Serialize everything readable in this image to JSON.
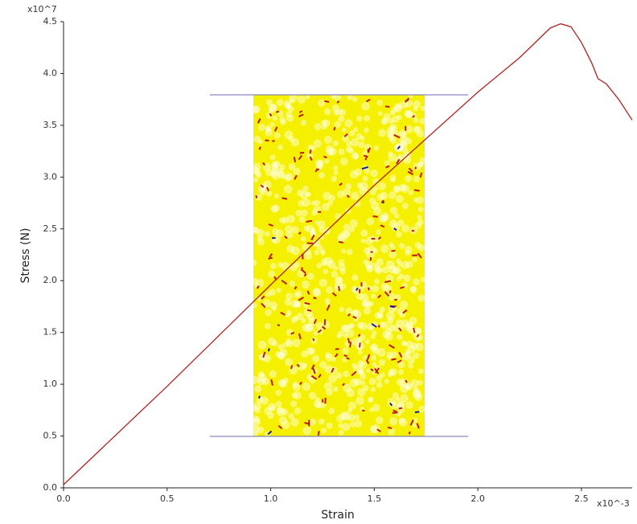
{
  "chart_data": {
    "type": "line",
    "x_label": "Strain",
    "y_label": "Stress (N)",
    "x_multiplier": "x10^-3",
    "y_multiplier": "x10^7",
    "xlim": [
      0,
      2.745
    ],
    "ylim": [
      0,
      4.5
    ],
    "xticks": [
      {
        "value": 0,
        "label": "0.0"
      },
      0.5,
      {
        "value": 1,
        "label": "1.0"
      },
      1.5,
      {
        "value": 2,
        "label": "2.0"
      },
      2.5
    ],
    "yticks": [
      {
        "value": 0,
        "label": "0.0"
      },
      0.5,
      {
        "value": 1,
        "label": "1.0"
      },
      1.5,
      {
        "value": 2,
        "label": "2.0"
      },
      2.5,
      {
        "value": 3,
        "label": "3.0"
      },
      3.5,
      {
        "value": 4,
        "label": "4.0"
      },
      4.5
    ],
    "x": [
      0,
      0.5,
      1.0,
      1.5,
      2.0,
      2.2,
      2.35,
      2.4,
      2.45,
      2.5,
      2.55,
      2.58,
      2.62,
      2.68,
      2.745
    ],
    "series": [
      {
        "color": "#b22222",
        "values": [
          0.03,
          0.98,
          1.96,
          2.92,
          3.82,
          4.15,
          4.44,
          4.48,
          4.45,
          4.3,
          4.1,
          3.95,
          3.9,
          3.75,
          3.55
        ]
      }
    ]
  }
}
